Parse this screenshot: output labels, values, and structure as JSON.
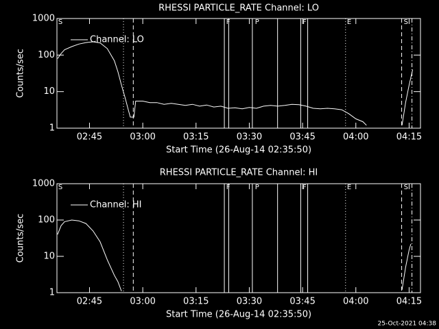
{
  "chart_data": [
    {
      "type": "line",
      "title": "RHESSI PARTICLE_RATE Channel: LO",
      "xlabel": "Start Time (26-Aug-14 02:35:50)",
      "ylabel": "Counts/sec",
      "log_scale": true,
      "legend": "upper left",
      "xlim": [
        155.83,
        258.2
      ],
      "xticks": [
        {
          "value": 165,
          "label": "02:45"
        },
        {
          "value": 180,
          "label": "03:00"
        },
        {
          "value": 195,
          "label": "03:15"
        },
        {
          "value": 210,
          "label": "03:30"
        },
        {
          "value": 225,
          "label": "03:45"
        },
        {
          "value": 240,
          "label": "04:00"
        },
        {
          "value": 255,
          "label": "04:15"
        }
      ],
      "ylim": [
        1,
        1000
      ],
      "yticks": [
        1,
        10,
        100,
        1000
      ],
      "x": [
        156,
        157,
        158,
        160,
        162,
        164,
        166,
        168,
        170,
        172,
        173,
        174,
        175,
        176,
        176.5,
        177.5,
        178,
        180,
        182,
        184,
        186,
        188,
        190,
        192,
        194,
        196,
        198,
        200,
        202,
        204,
        206,
        208,
        210,
        212,
        214,
        216,
        218,
        220,
        222,
        224,
        226,
        228,
        230,
        232,
        234,
        236,
        238,
        240,
        242,
        243,
        248,
        253,
        254,
        255,
        256
      ],
      "series": [
        {
          "name": "Channel: LO",
          "color": "#ffffff",
          "values": [
            80,
            110,
            140,
            170,
            200,
            220,
            230,
            215,
            150,
            70,
            35,
            15,
            7,
            3,
            2,
            2,
            5.5,
            5.5,
            5,
            5,
            4.5,
            4.8,
            4.5,
            4.2,
            4.5,
            4,
            4.3,
            3.8,
            4,
            3.5,
            3.6,
            3.4,
            3.7,
            3.5,
            4,
            4.2,
            4,
            4.2,
            4.5,
            4.4,
            4,
            3.5,
            3.4,
            3.5,
            3.4,
            3.2,
            2.5,
            1.8,
            1.5,
            1.2,
            null,
            1.2,
            5,
            15,
            40
          ]
        }
      ],
      "vlines": [
        {
          "x": 174.57,
          "style": "dotted"
        },
        {
          "x": 177.33,
          "style": "dashed"
        },
        {
          "x": 202.97,
          "style": "solid"
        },
        {
          "x": 204.2,
          "style": "solid"
        },
        {
          "x": 210.86,
          "style": "solid"
        },
        {
          "x": 217.96,
          "style": "solid"
        },
        {
          "x": 224.47,
          "style": "solid"
        },
        {
          "x": 226.44,
          "style": "solid"
        },
        {
          "x": 237.1,
          "style": "dotted"
        },
        {
          "x": 252.9,
          "style": "dashed"
        },
        {
          "x": 255.8,
          "style": "dashdot"
        }
      ],
      "flags": [
        {
          "x": 156.2,
          "label": "S"
        },
        {
          "x": 203.5,
          "label": "F"
        },
        {
          "x": 211.6,
          "label": "P"
        },
        {
          "x": 225,
          "label": "F"
        },
        {
          "x": 237.5,
          "label": "E"
        },
        {
          "x": 253.5,
          "label": "S"
        }
      ]
    },
    {
      "type": "line",
      "title": "RHESSI PARTICLE_RATE Channel: HI",
      "xlabel": "Start Time (26-Aug-14 02:35:50)",
      "ylabel": "Counts/sec",
      "log_scale": true,
      "legend": "upper left",
      "xlim": [
        155.83,
        258.2
      ],
      "xticks": [
        {
          "value": 165,
          "label": "02:45"
        },
        {
          "value": 180,
          "label": "03:00"
        },
        {
          "value": 195,
          "label": "03:15"
        },
        {
          "value": 210,
          "label": "03:30"
        },
        {
          "value": 225,
          "label": "03:45"
        },
        {
          "value": 240,
          "label": "04:00"
        },
        {
          "value": 255,
          "label": "04:15"
        }
      ],
      "ylim": [
        1,
        1000
      ],
      "yticks": [
        1,
        10,
        100,
        1000
      ],
      "x": [
        156,
        157,
        158,
        160,
        162,
        164,
        166,
        168,
        170,
        172,
        173,
        174,
        176,
        253,
        254,
        255,
        255.5
      ],
      "series": [
        {
          "name": "Channel: HI",
          "color": "#ffffff",
          "values": [
            40,
            70,
            90,
            100,
            95,
            80,
            50,
            25,
            8,
            3,
            2,
            1.1,
            null,
            1.2,
            5,
            15,
            22
          ]
        }
      ],
      "vlines": [
        {
          "x": 174.57,
          "style": "dotted"
        },
        {
          "x": 177.33,
          "style": "dashed"
        },
        {
          "x": 202.97,
          "style": "solid"
        },
        {
          "x": 204.2,
          "style": "solid"
        },
        {
          "x": 210.86,
          "style": "solid"
        },
        {
          "x": 217.96,
          "style": "solid"
        },
        {
          "x": 224.47,
          "style": "solid"
        },
        {
          "x": 226.44,
          "style": "solid"
        },
        {
          "x": 237.1,
          "style": "dotted"
        },
        {
          "x": 252.9,
          "style": "dashed"
        },
        {
          "x": 255.8,
          "style": "dashdot"
        }
      ],
      "flags": [
        {
          "x": 156.2,
          "label": "S"
        },
        {
          "x": 203.5,
          "label": "F"
        },
        {
          "x": 211.6,
          "label": "P"
        },
        {
          "x": 225,
          "label": "F"
        },
        {
          "x": 237.5,
          "label": "E"
        },
        {
          "x": 253.5,
          "label": "S"
        }
      ]
    }
  ],
  "footer": "25-Oct-2021 04:38"
}
